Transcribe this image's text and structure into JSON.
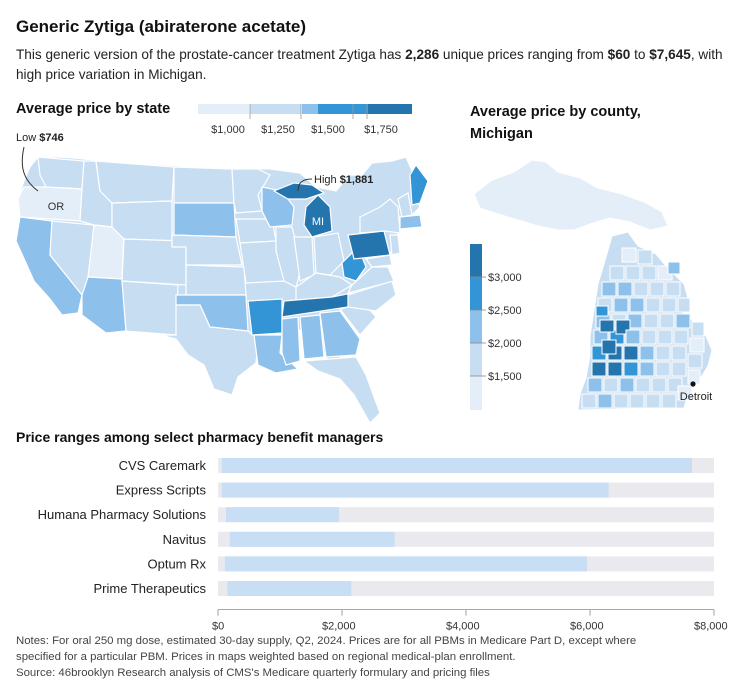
{
  "header": {
    "title": "Generic Zytiga (abiraterone acetate)",
    "dek": {
      "p1": "This generic version of the prostate-cancer treatment Zytiga has ",
      "count": "2,286",
      "p2": " unique prices ranging from ",
      "low": "$60",
      "p3": " to ",
      "high": "$7,645",
      "p4": ", with high price variation in Michigan."
    }
  },
  "state_map": {
    "title": "Average price by state",
    "legend": [
      "$1,000",
      "$1,250",
      "$1,500",
      "$1,750"
    ],
    "low_label": "Low",
    "low_value": "$746",
    "low_state": "OR",
    "high_label": "High",
    "high_value": "$1,881",
    "high_state": "MI"
  },
  "county_map": {
    "title_line1": "Average price by county,",
    "title_line2": "Michigan",
    "legend": [
      "$3,000",
      "$2,500",
      "$2,000",
      "$1,500"
    ],
    "city_label": "Detroit"
  },
  "colors": {
    "c1": "#e4eef9",
    "c2": "#c7ddf2",
    "c3": "#8dc0ea",
    "c4": "#3394d6",
    "c5": "#2474ae",
    "bar_bg": "#e9e9ee",
    "bar_fill": "#c7def5"
  },
  "chart_data": {
    "type": "bar",
    "title": "Price ranges among select pharmacy benefit managers",
    "orientation": "horizontal-range",
    "categories": [
      "CVS Caremark",
      "Express Scripts",
      "Humana Pharmacy Solutions",
      "Navitus",
      "Optum Rx",
      "Prime Therapeutics"
    ],
    "series": [
      {
        "name": "",
        "ranges": [
          [
            60,
            7645
          ],
          [
            60,
            6300
          ],
          [
            130,
            1950
          ],
          [
            190,
            2850
          ],
          [
            110,
            5950
          ],
          [
            150,
            2150
          ]
        ]
      }
    ],
    "xlim": [
      0,
      8000
    ],
    "xticks": [
      "$0",
      "$2,000",
      "$4,000",
      "$6,000",
      "$8,000"
    ],
    "xtick_values": [
      0,
      2000,
      4000,
      6000,
      8000
    ],
    "grid": false
  },
  "notes": {
    "line1": "Notes: For oral 250 mg dose, estimated 30-day supply, Q2, 2024. Prices are for all PBMs in Medicare Part D, except where",
    "line2": "specified for a particular PBM. Prices in maps weighted based on regional medical-plan enrollment.",
    "line3": "Source: 46brooklyn Research analysis of CMS's Medicare quarterly formulary and pricing files"
  }
}
